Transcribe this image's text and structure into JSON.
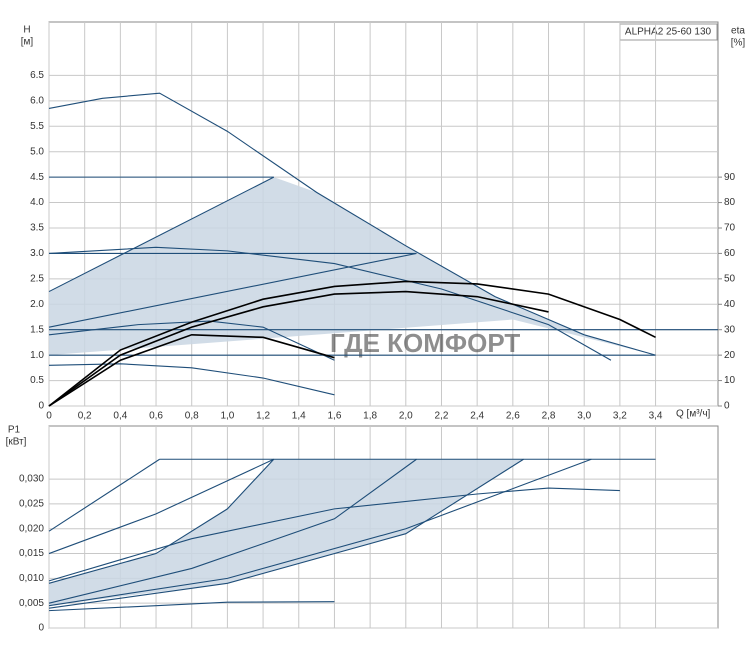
{
  "chart_data": [
    {
      "type": "line",
      "title": "ALPHA2 25-60 130",
      "ylabel": "H",
      "yunit": "[м]",
      "y2label": "eta",
      "y2unit": "[%]",
      "xlabel": "Q [м³/ч]",
      "watermark": "ГДЕ КОМФОРТ",
      "xlim": [
        0,
        3.75
      ],
      "ylim": [
        0,
        7.55
      ],
      "y2lim": [
        0,
        151
      ],
      "grid": true,
      "xticks": [
        0,
        {
          "value": 0.2,
          "label": "0,2"
        },
        {
          "value": 0.4,
          "label": "0,4"
        },
        {
          "value": 0.6,
          "label": "0,6"
        },
        {
          "value": 0.8,
          "label": "0,8"
        },
        {
          "value": 1.0,
          "label": "1,0"
        },
        {
          "value": 1.2,
          "label": "1,2"
        },
        {
          "value": 1.4,
          "label": "1,4"
        },
        {
          "value": 1.6,
          "label": "1,6"
        },
        {
          "value": 1.8,
          "label": "1,8"
        },
        {
          "value": 2.0,
          "label": "2,0"
        },
        {
          "value": 2.2,
          "label": "2,2"
        },
        {
          "value": 2.4,
          "label": "2,4"
        },
        {
          "value": 2.6,
          "label": "2,6"
        },
        {
          "value": 2.8,
          "label": "2,8"
        },
        {
          "value": 3.0,
          "label": "3,0"
        },
        {
          "value": 3.2,
          "label": "3,2"
        },
        {
          "value": 3.4,
          "label": "3,4"
        }
      ],
      "yticks": [
        0,
        0.5,
        {
          "value": 1.0,
          "label": "1.0"
        },
        1.5,
        {
          "value": 2.0,
          "label": "2.0"
        },
        2.5,
        {
          "value": 3.0,
          "label": "3.0"
        },
        3.5,
        {
          "value": 4.0,
          "label": "4.0"
        },
        4.5,
        {
          "value": 5.0,
          "label": "5.0"
        },
        5.5,
        {
          "value": 6.0,
          "label": "6.0"
        },
        6.5
      ],
      "y2ticks": [
        0,
        10,
        20,
        30,
        40,
        50,
        60,
        70,
        80,
        90
      ],
      "areas": [
        {
          "color": "#c9d6e3",
          "x": [
            0,
            0,
            1.26,
            1.5,
            2.0,
            2.5,
            3.0,
            3.4,
            2.6,
            0
          ],
          "values": [
            1.0,
            2.25,
            4.5,
            4.2,
            3.15,
            2.15,
            1.4,
            1.0,
            1.7,
            1.0
          ]
        }
      ],
      "series": [
        {
          "color": "#1f4e79",
          "x": [
            0,
            0.3,
            0.62,
            1.0,
            1.5,
            2.0,
            2.5,
            3.0,
            3.4
          ],
          "values": [
            5.85,
            6.05,
            6.15,
            5.4,
            4.2,
            3.15,
            2.15,
            1.4,
            1.0
          ]
        },
        {
          "color": "#1f4e79",
          "x": [
            0,
            1.26
          ],
          "values": [
            4.5,
            4.5
          ]
        },
        {
          "color": "#1f4e79",
          "x": [
            0,
            2.06
          ],
          "values": [
            3.0,
            3.0
          ]
        },
        {
          "color": "#1f4e79",
          "x": [
            0,
            3.75
          ],
          "values": [
            1.5,
            1.5
          ]
        },
        {
          "color": "#1f4e79",
          "x": [
            0,
            1.26
          ],
          "values": [
            2.25,
            4.5
          ]
        },
        {
          "color": "#1f4e79",
          "x": [
            0,
            2.06
          ],
          "values": [
            1.55,
            3.0
          ]
        },
        {
          "color": "#1f4e79",
          "x": [
            0,
            3.4
          ],
          "values": [
            1.0,
            1.0
          ]
        },
        {
          "color": "#1f4e79",
          "x": [
            0,
            0.6,
            1.0,
            1.6,
            2.2,
            2.8,
            3.15
          ],
          "values": [
            3.0,
            3.12,
            3.05,
            2.8,
            2.3,
            1.6,
            0.9
          ]
        },
        {
          "color": "#1f4e79",
          "x": [
            0,
            0.5,
            0.9,
            1.2,
            1.6
          ],
          "values": [
            1.4,
            1.6,
            1.67,
            1.55,
            0.9
          ]
        },
        {
          "color": "#1f4e79",
          "x": [
            0,
            0.4,
            0.8,
            1.2,
            1.6
          ],
          "values": [
            0.8,
            0.83,
            0.75,
            0.55,
            0.22
          ]
        },
        {
          "color": "#000000",
          "axis": "y2",
          "x": [
            0,
            0.4,
            0.8,
            1.2,
            1.6,
            2.0,
            2.4,
            2.8,
            3.2,
            3.4
          ],
          "values": [
            0,
            22,
            33,
            42,
            47,
            49,
            48,
            44,
            34,
            27
          ]
        },
        {
          "color": "#000000",
          "axis": "y2",
          "x": [
            0,
            0.4,
            0.8,
            1.2,
            1.6,
            2.0,
            2.4,
            2.8
          ],
          "values": [
            0,
            20,
            31,
            39,
            44,
            45,
            43,
            37
          ]
        },
        {
          "color": "#000000",
          "axis": "y2",
          "x": [
            0,
            0.4,
            0.8,
            1.2,
            1.6
          ],
          "values": [
            0,
            18,
            28,
            27,
            19
          ]
        }
      ]
    },
    {
      "type": "line",
      "ylabel": "P1",
      "yunit": "[кВт]",
      "xlim": [
        0,
        3.75
      ],
      "ylim": [
        0,
        0.0407
      ],
      "grid": true,
      "yticks": [
        0,
        {
          "value": 0.005,
          "label": "0,005"
        },
        {
          "value": 0.01,
          "label": "0,010"
        },
        {
          "value": 0.015,
          "label": "0,015"
        },
        {
          "value": 0.02,
          "label": "0,020"
        },
        {
          "value": 0.025,
          "label": "0,025"
        },
        {
          "value": 0.03,
          "label": "0,030"
        }
      ],
      "areas": [
        {
          "color": "#c9d6e3",
          "x": [
            0,
            0,
            0.6,
            1.0,
            1.26,
            2.66,
            2.0,
            1.0,
            0
          ],
          "values": [
            0.0045,
            0.009,
            0.015,
            0.024,
            0.034,
            0.034,
            0.019,
            0.009,
            0.0045
          ]
        }
      ],
      "series": [
        {
          "color": "#1f4e79",
          "x": [
            0.62,
            3.4
          ],
          "values": [
            0.034,
            0.034
          ]
        },
        {
          "color": "#1f4e79",
          "x": [
            0,
            0.62
          ],
          "values": [
            0.0195,
            0.034
          ]
        },
        {
          "color": "#1f4e79",
          "x": [
            0,
            0.6,
            1.26
          ],
          "values": [
            0.015,
            0.023,
            0.034
          ]
        },
        {
          "color": "#1f4e79",
          "x": [
            0,
            0.6,
            1.0,
            1.26
          ],
          "values": [
            0.009,
            0.015,
            0.024,
            0.034
          ]
        },
        {
          "color": "#1f4e79",
          "x": [
            0,
            0.8,
            1.6,
            2.06
          ],
          "values": [
            0.005,
            0.012,
            0.022,
            0.034
          ]
        },
        {
          "color": "#1f4e79",
          "x": [
            0,
            1.0,
            2.0,
            2.66
          ],
          "values": [
            0.004,
            0.009,
            0.019,
            0.034
          ]
        },
        {
          "color": "#1f4e79",
          "x": [
            0,
            1.0,
            2.0,
            3.04
          ],
          "values": [
            0.0045,
            0.01,
            0.02,
            0.034
          ]
        },
        {
          "color": "#1f4e79",
          "x": [
            0,
            0.8,
            1.6,
            2.4,
            2.8,
            3.2
          ],
          "values": [
            0.0095,
            0.018,
            0.024,
            0.027,
            0.0282,
            0.0277
          ]
        },
        {
          "color": "#1f4e79",
          "x": [
            0,
            0.6,
            1.0,
            1.6
          ],
          "values": [
            0.0035,
            0.0045,
            0.0052,
            0.0053
          ]
        }
      ]
    }
  ]
}
